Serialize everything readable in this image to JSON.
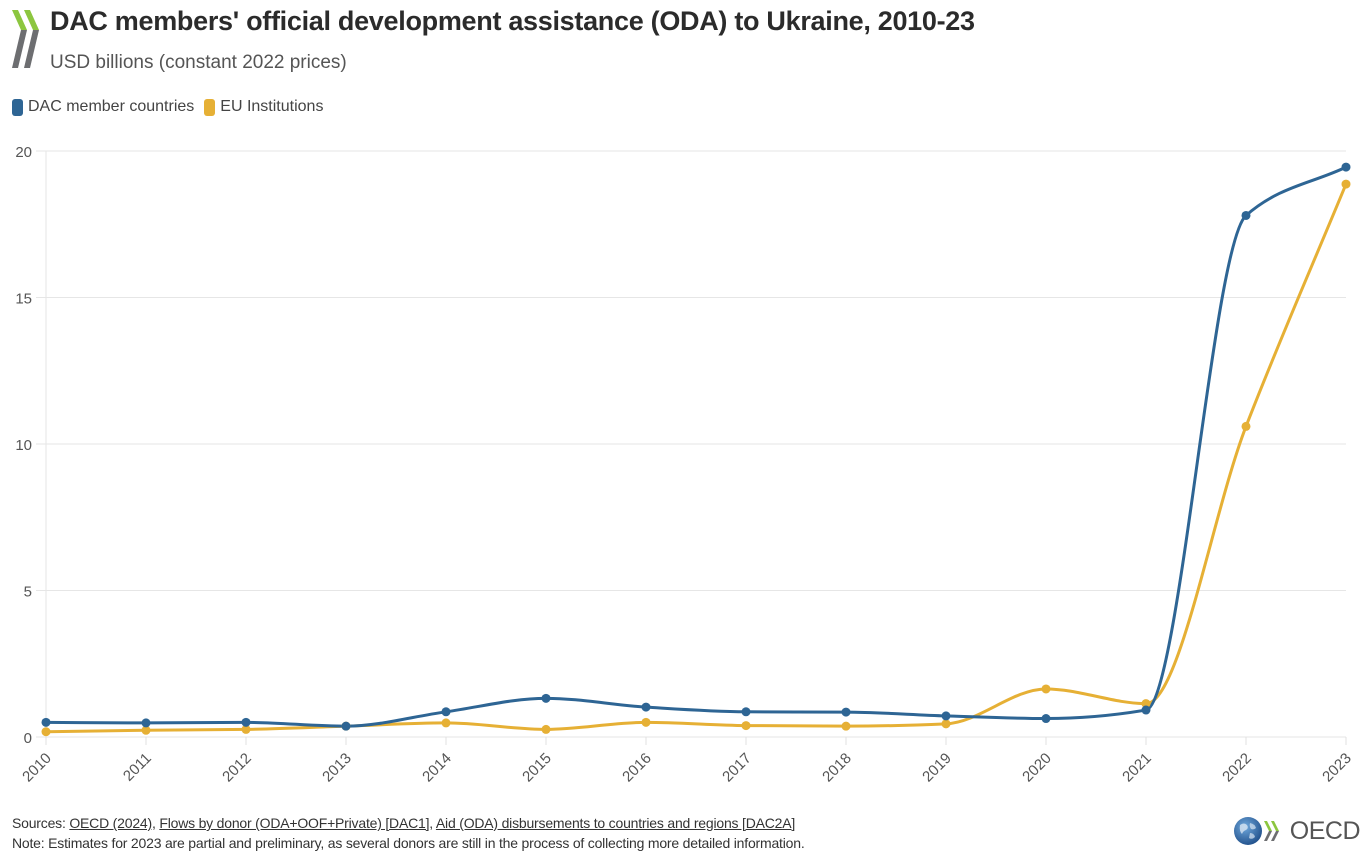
{
  "header": {
    "title": "DAC members' official development assistance (ODA) to Ukraine, 2010-23",
    "subtitle": "USD billions (constant 2022 prices)"
  },
  "legend": [
    {
      "label": "DAC member countries",
      "color": "#2e6594"
    },
    {
      "label": "EU Institutions",
      "color": "#e6b035"
    }
  ],
  "footer": {
    "sources_prefix": "Sources: ",
    "links": [
      "OECD (2024)",
      "Flows by donor (ODA+OOF+Private) [DAC1]",
      "Aid (ODA) disbursements to countries and regions [DAC2A]"
    ],
    "separator": ", ",
    "note": "Note: Estimates for 2023 are partial and preliminary, as several donors are still in the process of collecting more detailed information."
  },
  "logo": {
    "text": "OECD"
  },
  "chart_data": {
    "type": "line",
    "title": "DAC members' official development assistance (ODA) to Ukraine, 2010-23",
    "subtitle": "USD billions (constant 2022 prices)",
    "xlabel": "",
    "ylabel": "USD billions (constant 2022 prices)",
    "x": [
      "2010",
      "2011",
      "2012",
      "2013",
      "2014",
      "2015",
      "2016",
      "2017",
      "2018",
      "2019",
      "2020",
      "2021",
      "2022",
      "2023"
    ],
    "series": [
      {
        "name": "DAC member countries",
        "color": "#2e6594",
        "values": [
          0.5,
          0.48,
          0.5,
          0.37,
          0.86,
          1.32,
          1.02,
          0.86,
          0.85,
          0.72,
          0.63,
          0.92,
          17.8,
          19.45
        ]
      },
      {
        "name": "EU Institutions",
        "color": "#e6b035",
        "values": [
          0.18,
          0.23,
          0.26,
          0.37,
          0.48,
          0.26,
          0.5,
          0.39,
          0.37,
          0.45,
          1.64,
          1.14,
          10.6,
          18.87
        ]
      }
    ],
    "ylim": [
      0,
      20
    ],
    "yticks": [
      "0",
      "5",
      "10",
      "15",
      "20"
    ],
    "ytick_values": [
      0,
      5,
      10,
      15,
      20
    ],
    "grid": true,
    "legend_position": "top-left",
    "smooth": true
  }
}
